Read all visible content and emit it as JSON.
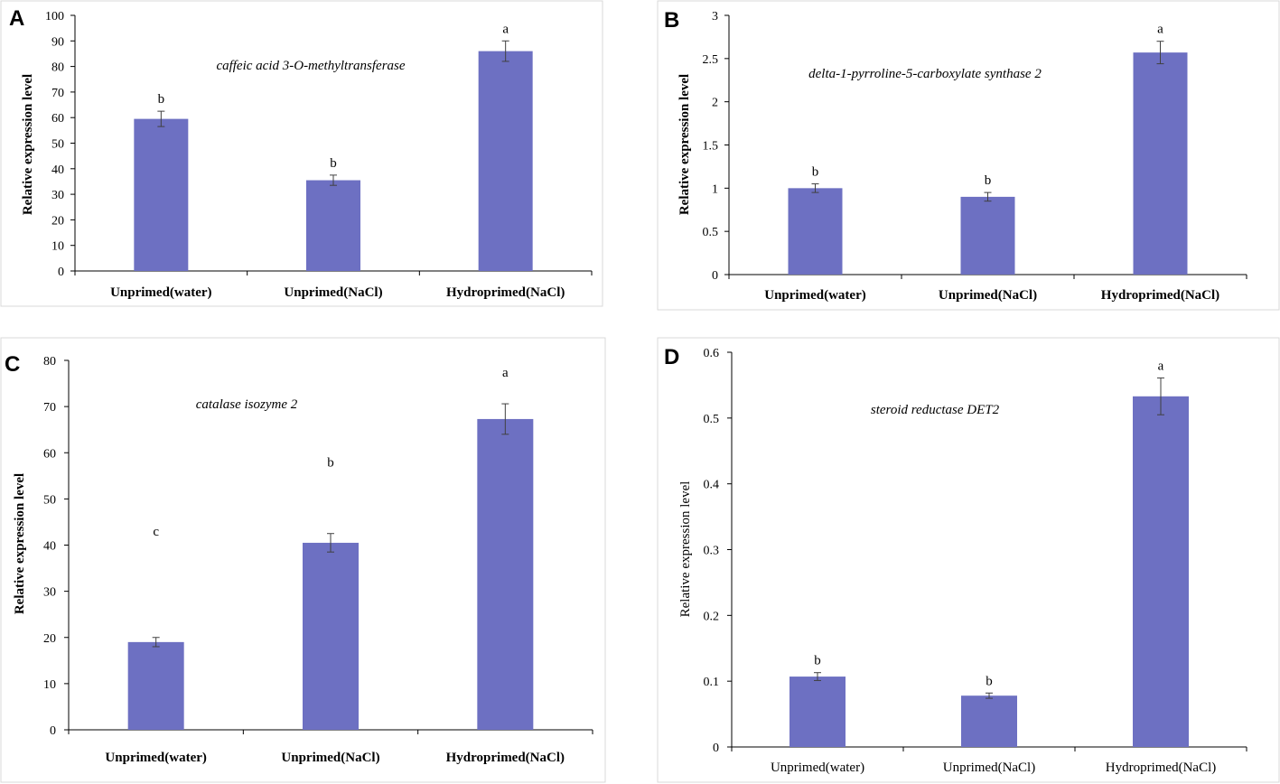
{
  "chart_data": [
    {
      "panel": "A",
      "type": "bar",
      "title": "caffeic acid 3-O-methyltransferase",
      "ylabel": "Relative expression level",
      "xlabel": "",
      "categories": [
        "Unprimed(water)",
        "Unprimed(NaCl)",
        "Hydroprimed(NaCl)"
      ],
      "values": [
        59.5,
        35.5,
        86
      ],
      "errors": [
        3,
        2,
        4
      ],
      "significance": [
        "b",
        "b",
        "a"
      ],
      "ylim": [
        0,
        100
      ],
      "yticks": [
        "0",
        "10",
        "20",
        "30",
        "40",
        "50",
        "60",
        "70",
        "80",
        "90",
        "100"
      ],
      "label_style": "bold"
    },
    {
      "panel": "B",
      "type": "bar",
      "title": "delta-1-pyrroline-5-carboxylate synthase 2",
      "ylabel": "Relative expression level",
      "xlabel": "",
      "categories": [
        "Unprimed(water)",
        "Unprimed(NaCl)",
        "Hydroprimed(NaCl)"
      ],
      "values": [
        1.0,
        0.9,
        2.57
      ],
      "errors": [
        0.05,
        0.05,
        0.13
      ],
      "significance": [
        "b",
        "b",
        "a"
      ],
      "ylim": [
        0,
        3
      ],
      "yticks": [
        "0",
        "0.5",
        "1",
        "1.5",
        "2",
        "2.5",
        "3"
      ],
      "label_style": "bold"
    },
    {
      "panel": "C",
      "type": "bar",
      "title": "catalase isozyme 2",
      "ylabel": "Relative expression level",
      "xlabel": "",
      "categories": [
        "Unprimed(water)",
        "Unprimed(NaCl)",
        "Hydroprimed(NaCl)"
      ],
      "values": [
        19,
        40.5,
        67.3
      ],
      "errors": [
        1,
        2,
        3.3
      ],
      "significance": [
        "c",
        "b",
        "a"
      ],
      "significance_values": [
        43,
        58,
        77.5
      ],
      "ylim": [
        0,
        80
      ],
      "yticks": [
        "0",
        "10",
        "20",
        "30",
        "40",
        "50",
        "60",
        "70",
        "80"
      ],
      "label_style": "bold"
    },
    {
      "panel": "D",
      "type": "bar",
      "title": "steroid reductase DET2",
      "ylabel": "Relative expression level",
      "xlabel": "",
      "categories": [
        "Unprimed(water)",
        "Unprimed(NaCl)",
        "Hydroprimed(NaCl)"
      ],
      "values": [
        0.107,
        0.078,
        0.533
      ],
      "errors": [
        0.006,
        0.004,
        0.028
      ],
      "significance": [
        "b",
        "b",
        "a"
      ],
      "ylim": [
        0,
        0.6
      ],
      "yticks": [
        "0",
        "0.1",
        "0.2",
        "0.3",
        "0.4",
        "0.5",
        "0.6"
      ],
      "label_style": "normal"
    }
  ],
  "colors": {
    "bar": "#6d70c2",
    "error_bar": "#404040",
    "frame": "#d9d9d9"
  }
}
